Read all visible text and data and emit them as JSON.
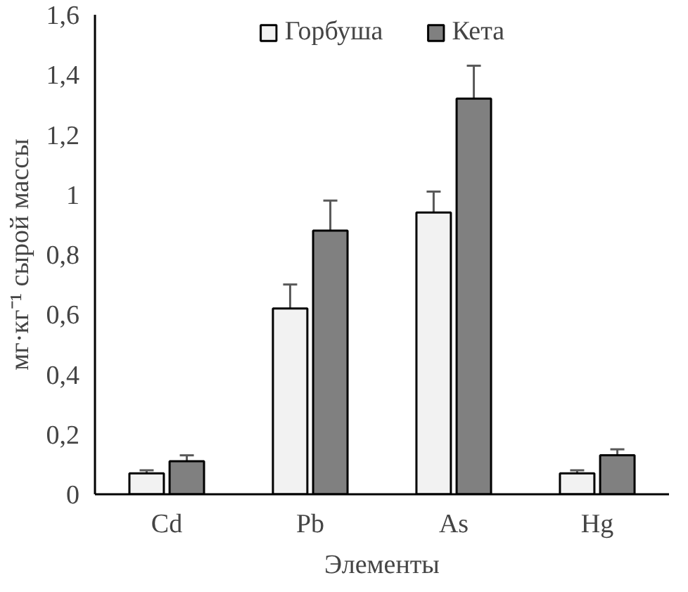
{
  "chart_data": {
    "type": "bar",
    "xlabel": "Элементы",
    "ylabel": "мг·кг⁻¹ сырой массы",
    "categories": [
      "Cd",
      "Pb",
      "As",
      "Hg"
    ],
    "series": [
      {
        "name": "Горбуша",
        "color": "#f2f2f2",
        "values": [
          0.07,
          0.62,
          0.94,
          0.07
        ],
        "errors": [
          0.01,
          0.08,
          0.07,
          0.01
        ]
      },
      {
        "name": "Кета",
        "color": "#808080",
        "values": [
          0.11,
          0.88,
          1.32,
          0.13
        ],
        "errors": [
          0.02,
          0.1,
          0.11,
          0.02
        ]
      }
    ],
    "ylim": [
      0,
      1.6
    ],
    "yticks": [
      0,
      {
        "value": 0.2,
        "label": "0,2"
      },
      {
        "value": 0.4,
        "label": "0,4"
      },
      {
        "value": 0.6,
        "label": "0,6"
      },
      {
        "value": 0.8,
        "label": "0,8"
      },
      1,
      {
        "value": 1.2,
        "label": "1,2"
      },
      {
        "value": 1.4,
        "label": "1,4"
      },
      {
        "value": 1.6,
        "label": "1,6"
      }
    ],
    "grid": false,
    "legend": "top"
  }
}
